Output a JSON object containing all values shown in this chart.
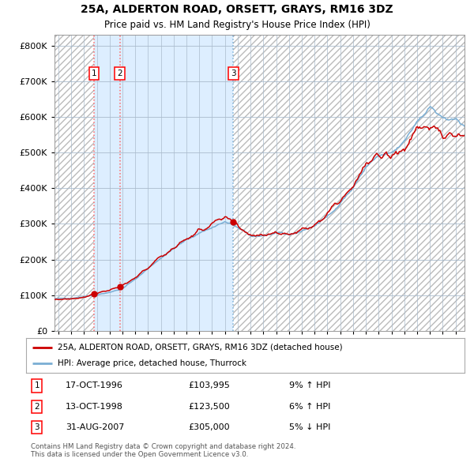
{
  "title": "25A, ALDERTON ROAD, ORSETT, GRAYS, RM16 3DZ",
  "subtitle": "Price paid vs. HM Land Registry's House Price Index (HPI)",
  "legend_line1": "25A, ALDERTON ROAD, ORSETT, GRAYS, RM16 3DZ (detached house)",
  "legend_line2": "HPI: Average price, detached house, Thurrock",
  "transactions": [
    {
      "num": 1,
      "date": "17-OCT-1996",
      "price": 103995,
      "price_str": "£103,995",
      "pct": "9%",
      "dir": "↑",
      "year": 1996.79
    },
    {
      "num": 2,
      "date": "13-OCT-1998",
      "price": 123500,
      "price_str": "£123,500",
      "pct": "6%",
      "dir": "↑",
      "year": 1998.79
    },
    {
      "num": 3,
      "date": "31-AUG-2007",
      "price": 305000,
      "price_str": "£305,000",
      "pct": "5%",
      "dir": "↓",
      "year": 2007.66
    }
  ],
  "footer1": "Contains HM Land Registry data © Crown copyright and database right 2024.",
  "footer2": "This data is licensed under the Open Government Licence v3.0.",
  "hpi_color": "#7aaed4",
  "price_color": "#cc0000",
  "bg_color": "#ddeeff",
  "hatch_bg": "#e8e8e8",
  "grid_color": "#aabbcc",
  "vline_red_color": "#ff6666",
  "vline_blue_color": "#7aaed4",
  "ylim": [
    0,
    830000
  ],
  "yticks": [
    0,
    100000,
    200000,
    300000,
    400000,
    500000,
    600000,
    700000,
    800000
  ],
  "xstart": 1993.7,
  "xend": 2025.7
}
